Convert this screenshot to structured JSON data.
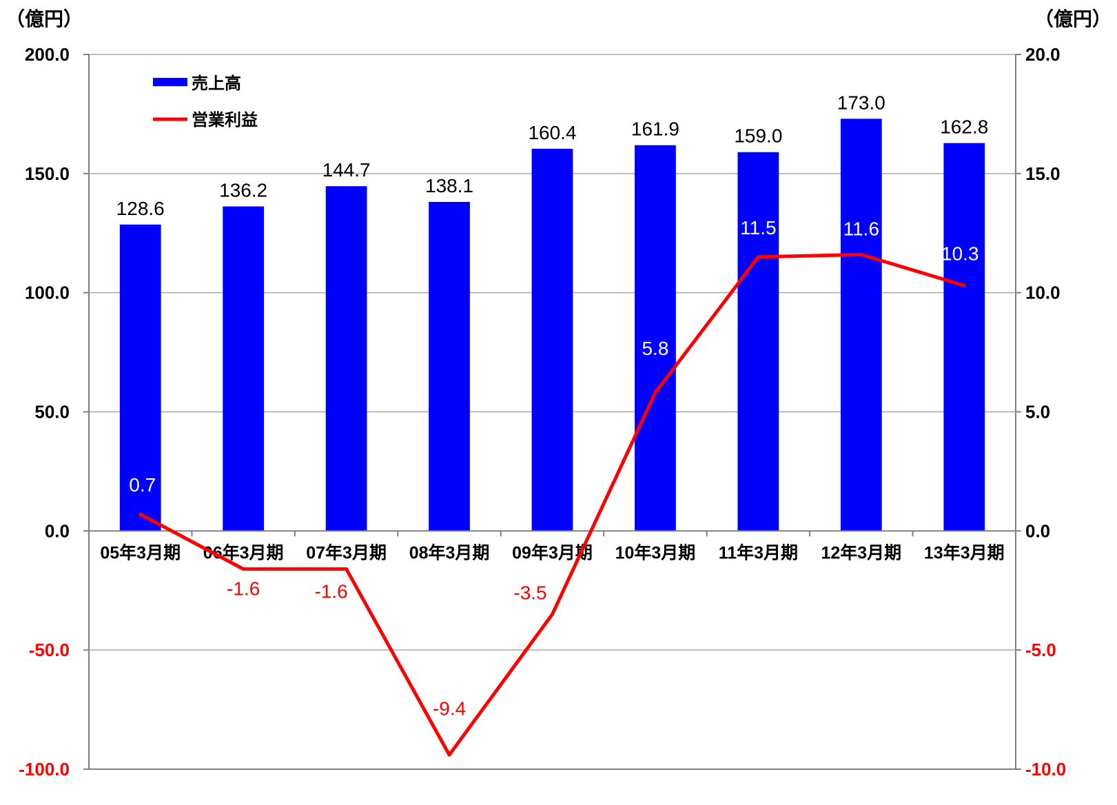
{
  "chart_data": {
    "type": "bar",
    "categories": [
      "05年3月期",
      "06年3月期",
      "07年3月期",
      "08年3月期",
      "09年3月期",
      "10年3月期",
      "11年3月期",
      "12年3月期",
      "13年3月期"
    ],
    "left_unit": "（億円）",
    "right_unit": "（億円）",
    "left_axis": {
      "range": [
        -100,
        200
      ],
      "ticks": [
        "-100.0",
        "-50.0",
        "0.0",
        "50.0",
        "100.0",
        "150.0",
        "200.0"
      ],
      "tick_values": [
        -100,
        -50,
        0,
        50,
        100,
        150,
        200
      ]
    },
    "right_axis": {
      "range": [
        -10,
        20
      ],
      "ticks": [
        "-10.0",
        "-5.0",
        "0.0",
        "5.0",
        "10.0",
        "15.0",
        "20.0"
      ],
      "tick_values": [
        -10,
        -5,
        0,
        5,
        10,
        15,
        20
      ]
    },
    "grid": true,
    "legend_position": "top-left",
    "series": [
      {
        "name": "売上高",
        "type": "bar",
        "axis": "left",
        "color": "#0000ff",
        "values": [
          128.6,
          136.2,
          144.7,
          138.1,
          160.4,
          161.9,
          159.0,
          173.0,
          162.8
        ],
        "labels": [
          "128.6",
          "136.2",
          "144.7",
          "138.1",
          "160.4",
          "161.9",
          "159.0",
          "173.0",
          "162.8"
        ]
      },
      {
        "name": "営業利益",
        "type": "line",
        "axis": "right",
        "color": "#ff0000",
        "values": [
          0.7,
          -1.6,
          -1.6,
          -9.4,
          -3.5,
          5.8,
          11.5,
          11.6,
          10.3
        ],
        "labels": [
          "0.7",
          "-1.6",
          "-1.6",
          "-9.4",
          "-3.5",
          "5.8",
          "11.5",
          "11.6",
          "10.3"
        ]
      }
    ]
  }
}
